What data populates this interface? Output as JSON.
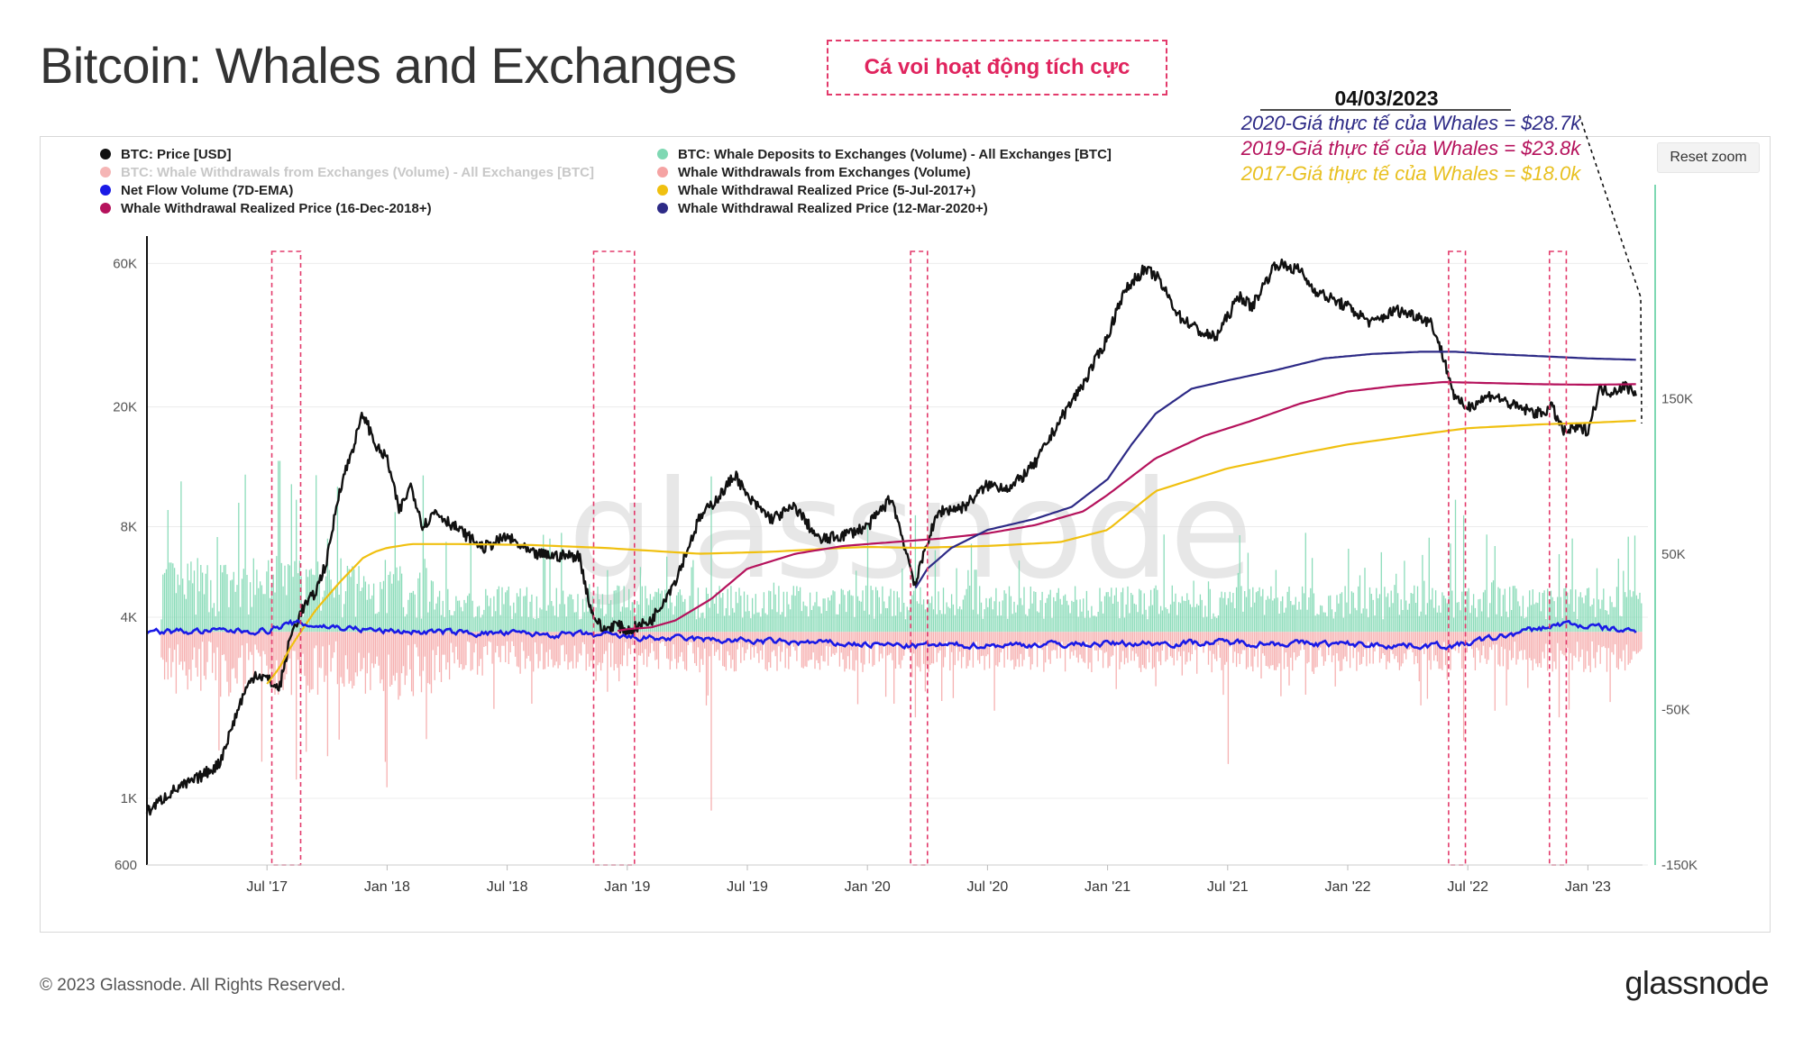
{
  "page": {
    "title": "Bitcoin: Whales and Exchanges",
    "callout": "Cá voi hoạt động tích cực",
    "reset_zoom": "Reset zoom",
    "watermark": "glassnode",
    "footer_copyright": "© 2023 Glassnode. All Rights Reserved.",
    "footer_logo": "glassnode"
  },
  "annotation": {
    "date": "04/03/2023",
    "lines": [
      {
        "text": "2020-Giá thực tế của Whales = $28.7k",
        "color": "#2d2a86"
      },
      {
        "text": "2019-Giá thực tế của Whales = $23.8k",
        "color": "#b5125c"
      },
      {
        "text": "2017-Giá thực tế của Whales = $18.0k",
        "color": "#e8c020"
      }
    ]
  },
  "legend": [
    {
      "label": "BTC: Price [USD]",
      "color": "#111111",
      "muted": false
    },
    {
      "label": "BTC: Whale Deposits to Exchanges (Volume) - All Exchanges [BTC]",
      "color": "#7fd8b3",
      "muted": false
    },
    {
      "label": "BTC: Whale Withdrawals from Exchanges (Volume) - All Exchanges [BTC]",
      "color": "#f5b5b5",
      "muted": true
    },
    {
      "label": "Whale Withdrawals from Exchanges (Volume)",
      "color": "#f5a3a3",
      "muted": false
    },
    {
      "label": "Net Flow Volume (7D-EMA)",
      "color": "#1a1ae6",
      "muted": false
    },
    {
      "label": "Whale Withdrawal Realized Price (5-Jul-2017+)",
      "color": "#f0c010",
      "muted": false
    },
    {
      "label": "Whale Withdrawal Realized Price (16-Dec-2018+)",
      "color": "#b5125c",
      "muted": false
    },
    {
      "label": "Whale Withdrawal Realized Price (12-Mar-2020+)",
      "color": "#2d2a86",
      "muted": false
    }
  ],
  "chart_data": {
    "type": "line",
    "title": "Bitcoin: Whales and Exchanges",
    "x_tick_labels": [
      "Jul '17",
      "Jan '18",
      "Jul '18",
      "Jan '19",
      "Jul '19",
      "Jan '20",
      "Jul '20",
      "Jan '21",
      "Jul '21",
      "Jan '22",
      "Jul '22",
      "Jan '23"
    ],
    "y_left": {
      "scale": "log",
      "ylim": [
        600,
        70000
      ],
      "tick_labels": [
        "600",
        "1K",
        "4K",
        "8K",
        "20K",
        "60K"
      ],
      "ticks": [
        600,
        1000,
        4000,
        8000,
        20000,
        60000
      ]
    },
    "y_right": {
      "scale": "linear",
      "ylim": [
        -150000,
        250000
      ],
      "tick_labels": [
        "-150K",
        "-50K",
        "50K",
        "150K"
      ],
      "ticks": [
        -150000,
        -50000,
        50000,
        150000
      ]
    },
    "x_range": [
      2017.0,
      2023.25
    ],
    "highlight_periods": [
      [
        2017.52,
        2017.64
      ],
      [
        2018.86,
        2019.03
      ],
      [
        2020.18,
        2020.25
      ],
      [
        2022.42,
        2022.49
      ],
      [
        2022.84,
        2022.91
      ]
    ],
    "series": [
      {
        "name": "BTC: Price [USD]",
        "axis": "left",
        "color": "#111111",
        "x": [
          2017.0,
          2017.1,
          2017.2,
          2017.3,
          2017.4,
          2017.45,
          2017.5,
          2017.55,
          2017.6,
          2017.65,
          2017.7,
          2017.75,
          2017.8,
          2017.85,
          2017.9,
          2017.96,
          2018.0,
          2018.05,
          2018.1,
          2018.15,
          2018.2,
          2018.3,
          2018.4,
          2018.5,
          2018.6,
          2018.7,
          2018.8,
          2018.85,
          2018.9,
          2018.95,
          2019.0,
          2019.1,
          2019.2,
          2019.3,
          2019.4,
          2019.45,
          2019.5,
          2019.6,
          2019.7,
          2019.8,
          2019.9,
          2020.0,
          2020.1,
          2020.2,
          2020.25,
          2020.3,
          2020.4,
          2020.5,
          2020.6,
          2020.7,
          2020.8,
          2020.9,
          2021.0,
          2021.05,
          2021.1,
          2021.15,
          2021.2,
          2021.3,
          2021.4,
          2021.45,
          2021.5,
          2021.55,
          2021.6,
          2021.7,
          2021.8,
          2021.85,
          2021.9,
          2022.0,
          2022.1,
          2022.2,
          2022.3,
          2022.35,
          2022.4,
          2022.45,
          2022.5,
          2022.6,
          2022.7,
          2022.8,
          2022.85,
          2022.9,
          2022.95,
          2023.0,
          2023.05,
          2023.1,
          2023.15,
          2023.2
        ],
        "values": [
          900,
          1050,
          1150,
          1300,
          2200,
          2600,
          2500,
          2300,
          3500,
          4300,
          4800,
          6200,
          10500,
          14000,
          19000,
          14500,
          13500,
          9000,
          11000,
          8000,
          9000,
          7800,
          6800,
          7400,
          6500,
          6400,
          6400,
          4200,
          3600,
          3800,
          3600,
          3900,
          5300,
          8500,
          10500,
          12000,
          10000,
          8500,
          9300,
          7200,
          7500,
          8000,
          10000,
          5100,
          7200,
          9000,
          9300,
          11000,
          10800,
          13000,
          18000,
          24000,
          34000,
          45000,
          52000,
          57000,
          55000,
          40000,
          35000,
          34000,
          40000,
          47000,
          43000,
          60000,
          57000,
          50000,
          47000,
          43000,
          38000,
          42000,
          40000,
          38000,
          29000,
          21000,
          20000,
          22000,
          20000,
          19000,
          20000,
          16500,
          17000,
          16800,
          23000,
          22500,
          23500,
          22500
        ]
      },
      {
        "name": "Whale Withdrawal Realized Price (5-Jul-2017+)",
        "axis": "left",
        "color": "#f0c010",
        "x": [
          2017.5,
          2017.55,
          2017.6,
          2017.7,
          2017.8,
          2017.9,
          2017.95,
          2018.0,
          2018.1,
          2018.3,
          2018.6,
          2018.9,
          2019.3,
          2019.6,
          2019.9,
          2020.0,
          2020.2,
          2020.5,
          2020.8,
          2021.0,
          2021.2,
          2021.5,
          2021.8,
          2022.0,
          2022.3,
          2022.5,
          2022.8,
          2023.0,
          2023.2
        ],
        "values": [
          2400,
          2700,
          3200,
          4200,
          5200,
          6300,
          6600,
          6800,
          7000,
          7000,
          6950,
          6800,
          6500,
          6600,
          6800,
          6850,
          6800,
          6900,
          7100,
          7800,
          10500,
          12500,
          14000,
          15000,
          16200,
          17000,
          17500,
          17700,
          18000
        ]
      },
      {
        "name": "Whale Withdrawal Realized Price (16-Dec-2018+)",
        "axis": "left",
        "color": "#b5125c",
        "x": [
          2018.96,
          2019.0,
          2019.1,
          2019.2,
          2019.35,
          2019.5,
          2019.7,
          2019.9,
          2020.1,
          2020.3,
          2020.5,
          2020.7,
          2020.9,
          2021.0,
          2021.2,
          2021.4,
          2021.6,
          2021.8,
          2022.0,
          2022.2,
          2022.4,
          2022.6,
          2022.8,
          2023.0,
          2023.2
        ],
        "values": [
          3600,
          3650,
          3700,
          3900,
          4600,
          5800,
          6500,
          6900,
          7100,
          7300,
          7600,
          8100,
          9000,
          10200,
          13500,
          16000,
          18000,
          20500,
          22500,
          23500,
          24200,
          24000,
          23800,
          23700,
          23800
        ]
      },
      {
        "name": "Whale Withdrawal Realized Price (12-Mar-2020+)",
        "axis": "left",
        "color": "#2d2a86",
        "x": [
          2020.2,
          2020.25,
          2020.35,
          2020.5,
          2020.7,
          2020.85,
          2021.0,
          2021.1,
          2021.2,
          2021.35,
          2021.5,
          2021.7,
          2021.9,
          2022.1,
          2022.3,
          2022.45,
          2022.6,
          2022.8,
          2023.0,
          2023.2
        ],
        "values": [
          5000,
          5800,
          6800,
          7800,
          8500,
          9300,
          11500,
          15000,
          19000,
          23000,
          24500,
          26500,
          29000,
          30000,
          30500,
          30500,
          30000,
          29500,
          29000,
          28700
        ]
      },
      {
        "name": "Net Flow Volume (7D-EMA)",
        "axis": "right",
        "color": "#1a1ae6",
        "noise_amplitude": 4000,
        "x": [
          2017.0,
          2017.5,
          2017.6,
          2018.0,
          2018.9,
          2019.0,
          2020.2,
          2021.5,
          2022.45,
          2022.9,
          2023.2
        ],
        "values": [
          0,
          2000,
          12000,
          1000,
          -5000,
          -8000,
          -20000,
          -15000,
          -20000,
          12000,
          0
        ]
      },
      {
        "name": "BTC: Whale Deposits to Exchanges (Volume) - All Exchanges [BTC]",
        "axis": "right",
        "color": "#7fd8b3",
        "style": "bars",
        "spikes_x": [
          2017.55,
          2017.6,
          2017.62,
          2017.75,
          2019.35,
          2020.0,
          2020.2,
          2020.45,
          2022.45,
          2022.48,
          2022.88
        ],
        "spikes_values": [
          110000,
          95000,
          85000,
          60000,
          100000,
          70000,
          75000,
          40000,
          85000,
          75000,
          50000
        ]
      },
      {
        "name": "Whale Withdrawals from Exchanges (Volume)",
        "axis": "right",
        "color": "#f5a3a3",
        "style": "bars",
        "spikes_x": [
          2017.62,
          2017.75,
          2018.0,
          2019.35,
          2020.2,
          2021.5,
          2022.48,
          2022.88,
          2022.92
        ],
        "spikes_values": [
          -95000,
          -80000,
          -100000,
          -115000,
          -55000,
          -85000,
          -70000,
          -55000,
          -50000
        ]
      }
    ]
  }
}
